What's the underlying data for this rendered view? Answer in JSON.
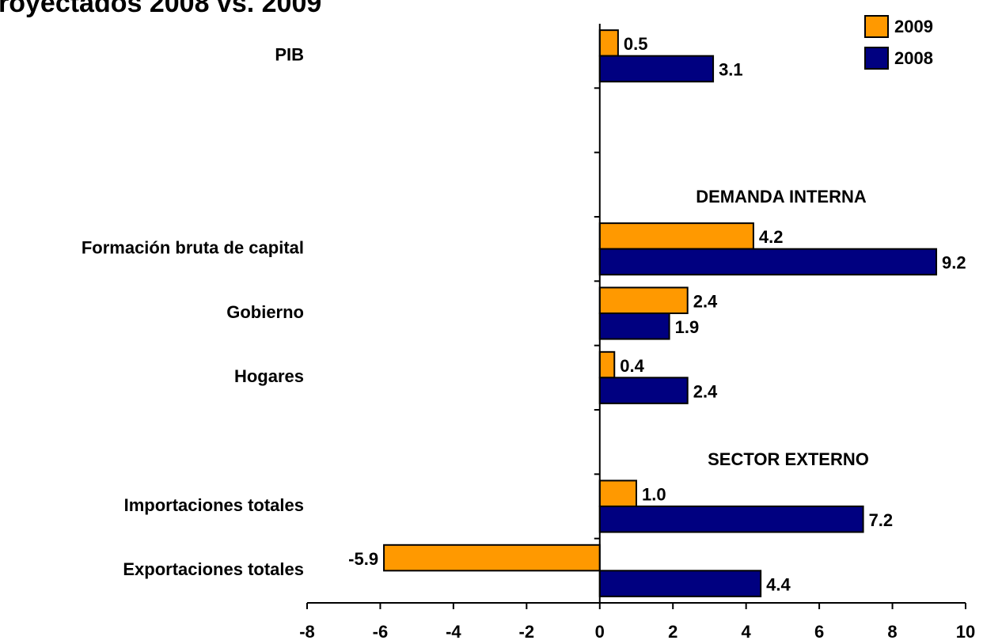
{
  "chart_data": {
    "type": "bar",
    "orientation": "horizontal",
    "title": "royectados 2008 vs. 2009",
    "annotations": [
      "DEMANDA INTERNA",
      "SECTOR EXTERNO"
    ],
    "categories": [
      "PIB",
      null,
      null,
      "Formación bruta de capital",
      "Gobierno",
      "Hogares",
      null,
      "Importaciones totales",
      "Exportaciones totales"
    ],
    "series": [
      {
        "name": "2009",
        "color": "#ff9900",
        "values": [
          0.5,
          null,
          null,
          4.2,
          2.4,
          0.4,
          null,
          1.0,
          -5.9
        ],
        "value_labels": [
          "0.5",
          null,
          null,
          "4.2",
          "2.4",
          "0.4",
          null,
          "1.0",
          "-5.9"
        ]
      },
      {
        "name": "2008",
        "color": "#000080",
        "values": [
          3.1,
          null,
          null,
          9.2,
          1.9,
          2.4,
          null,
          7.2,
          4.4
        ]
      }
    ],
    "xlim": [
      -8,
      10
    ],
    "xticks": [
      -8,
      -6,
      -4,
      -2,
      0,
      2,
      4,
      6,
      8,
      10
    ],
    "legend": "upper right",
    "grid": false
  }
}
